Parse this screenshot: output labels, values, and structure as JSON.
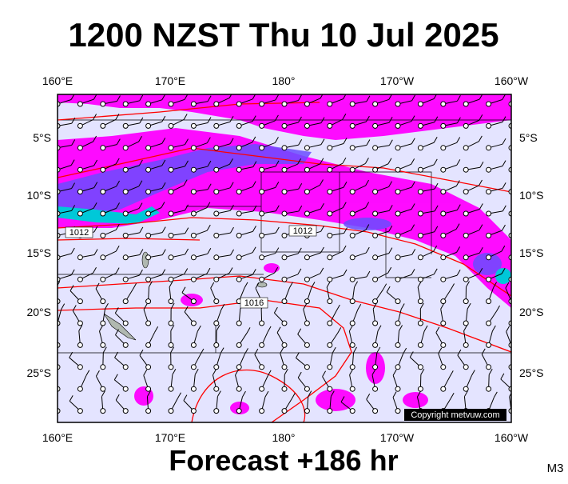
{
  "header": {
    "title": "1200 NZST Thu 10 Jul 2025"
  },
  "map": {
    "lon_labels": [
      "160°E",
      "170°E",
      "180°",
      "170°W",
      "160°W"
    ],
    "lat_labels": [
      "5°S",
      "10°S",
      "15°S",
      "20°S",
      "25°S"
    ],
    "isobar_labels": [
      "1012",
      "1012",
      "1016"
    ],
    "copyright": "Copyright metvuw.com"
  },
  "footer": {
    "forecast": "Forecast +186 hr",
    "model": "M3"
  }
}
